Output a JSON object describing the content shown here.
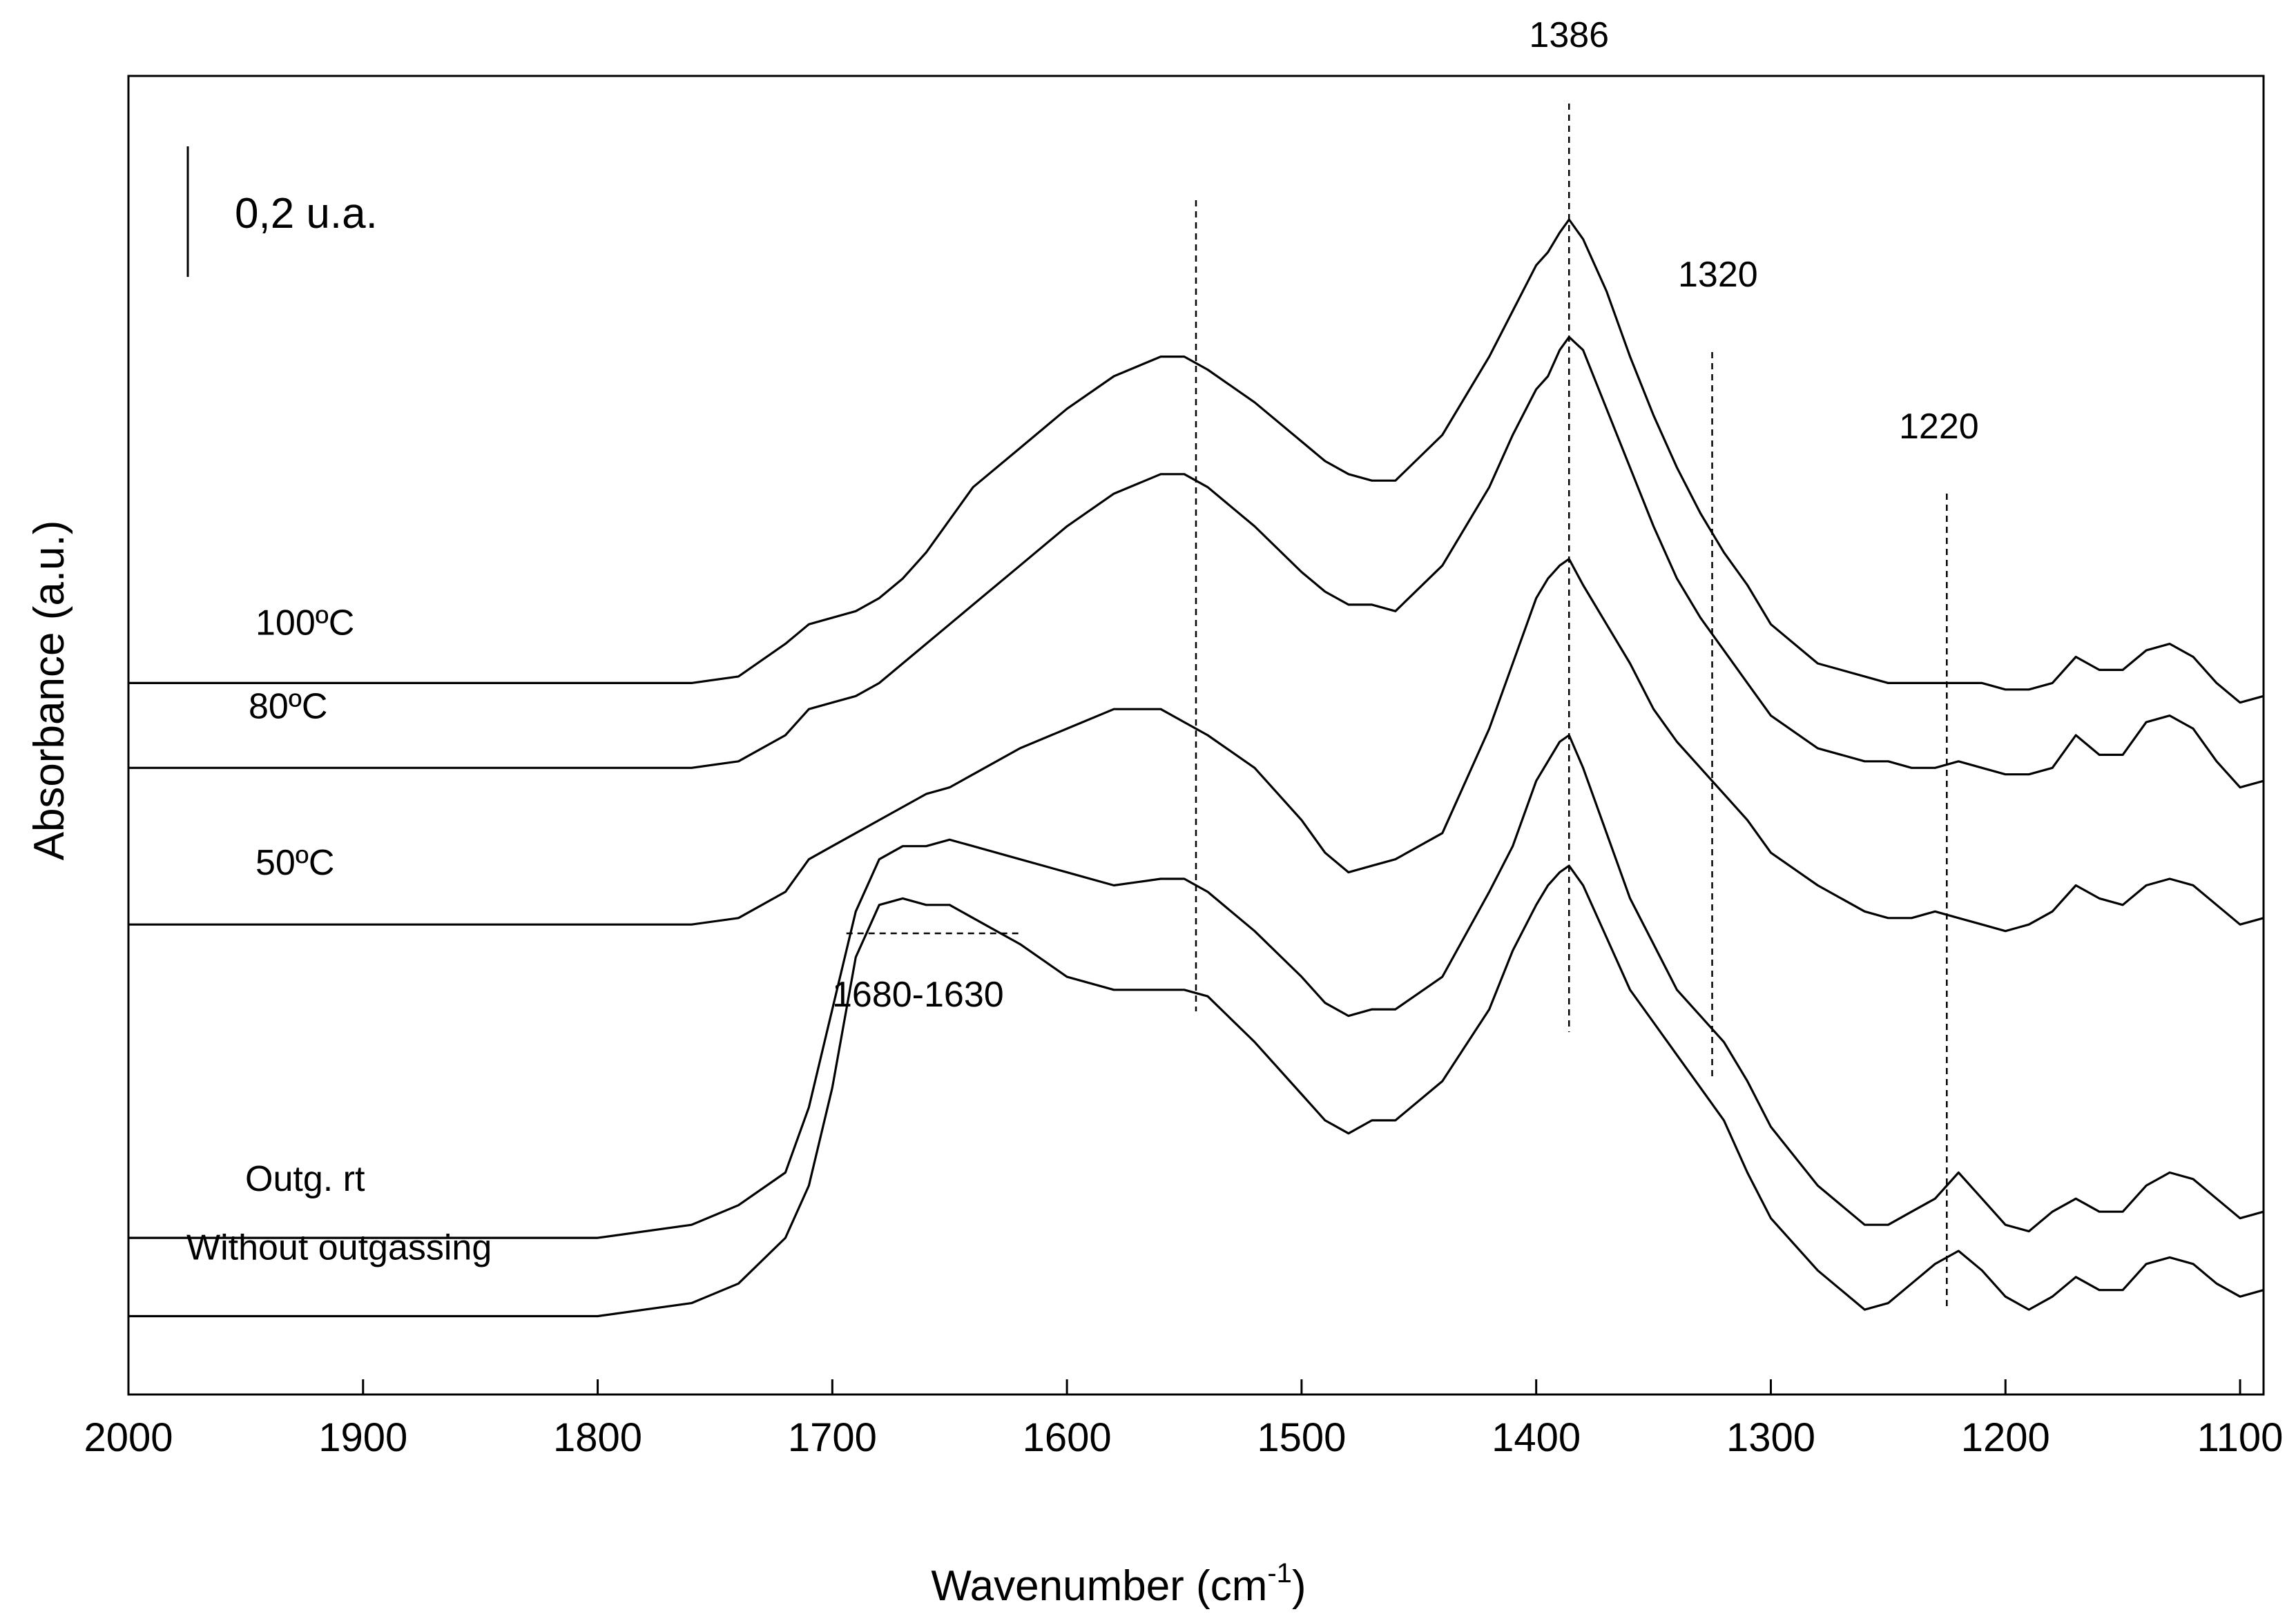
{
  "chart_data": {
    "type": "line",
    "title": "",
    "xlabel": "Wavenumber (cm",
    "xlabel_sup": "-1",
    "xlabel_close": ")",
    "ylabel": "Absorbance (a.u.)",
    "xlim": [
      2000,
      1090
    ],
    "x_reversed": true,
    "xticks": [
      "2000",
      "1900",
      "1800",
      "1700",
      "1600",
      "1500",
      "1400",
      "1300",
      "1200",
      "1100"
    ],
    "ylim": [
      -0.12,
      1.9
    ],
    "scale_bar": {
      "label": "0,2 u.a.",
      "value": 0.2
    },
    "grid": false,
    "x": [
      2000,
      1800,
      1760,
      1740,
      1720,
      1710,
      1700,
      1690,
      1680,
      1670,
      1660,
      1650,
      1640,
      1620,
      1600,
      1580,
      1560,
      1550,
      1540,
      1520,
      1500,
      1490,
      1480,
      1470,
      1460,
      1440,
      1420,
      1410,
      1400,
      1395,
      1390,
      1386,
      1380,
      1370,
      1360,
      1350,
      1340,
      1330,
      1320,
      1310,
      1300,
      1280,
      1260,
      1250,
      1240,
      1230,
      1220,
      1210,
      1200,
      1190,
      1180,
      1170,
      1160,
      1150,
      1140,
      1130,
      1120,
      1110,
      1100,
      1090
    ],
    "series": [
      {
        "name": "100ºC",
        "values": [
          0.0,
          0.0,
          0.0,
          0.01,
          0.06,
          0.09,
          0.1,
          0.11,
          0.13,
          0.16,
          0.2,
          0.25,
          0.3,
          0.36,
          0.42,
          0.47,
          0.5,
          0.5,
          0.48,
          0.43,
          0.37,
          0.34,
          0.32,
          0.31,
          0.31,
          0.38,
          0.5,
          0.57,
          0.64,
          0.66,
          0.69,
          0.71,
          0.68,
          0.6,
          0.5,
          0.41,
          0.33,
          0.26,
          0.2,
          0.15,
          0.09,
          0.03,
          0.01,
          0.0,
          0.0,
          0.0,
          0.0,
          0.0,
          -0.01,
          -0.01,
          0.0,
          0.04,
          0.02,
          0.02,
          0.05,
          0.06,
          0.04,
          0.0,
          -0.03,
          -0.02
        ]
      },
      {
        "name": "80ºC",
        "values": [
          0.0,
          0.0,
          0.0,
          0.01,
          0.05,
          0.09,
          0.1,
          0.11,
          0.13,
          0.16,
          0.19,
          0.22,
          0.25,
          0.31,
          0.37,
          0.42,
          0.45,
          0.45,
          0.43,
          0.37,
          0.3,
          0.27,
          0.25,
          0.25,
          0.24,
          0.31,
          0.43,
          0.51,
          0.58,
          0.6,
          0.64,
          0.66,
          0.64,
          0.55,
          0.46,
          0.37,
          0.29,
          0.23,
          0.18,
          0.13,
          0.08,
          0.03,
          0.01,
          0.01,
          0.0,
          0.0,
          0.01,
          0.0,
          -0.01,
          -0.01,
          0.0,
          0.05,
          0.02,
          0.02,
          0.07,
          0.08,
          0.06,
          0.01,
          -0.03,
          -0.02
        ]
      },
      {
        "name": "50ºC",
        "values": [
          0.0,
          0.0,
          0.0,
          0.01,
          0.05,
          0.1,
          0.12,
          0.14,
          0.16,
          0.18,
          0.2,
          0.21,
          0.23,
          0.27,
          0.3,
          0.33,
          0.33,
          0.31,
          0.29,
          0.24,
          0.16,
          0.11,
          0.08,
          0.09,
          0.1,
          0.14,
          0.3,
          0.4,
          0.5,
          0.53,
          0.55,
          0.56,
          0.52,
          0.46,
          0.4,
          0.33,
          0.28,
          0.24,
          0.2,
          0.16,
          0.11,
          0.06,
          0.02,
          0.01,
          0.01,
          0.02,
          0.01,
          0.0,
          -0.01,
          0.0,
          0.02,
          0.06,
          0.04,
          0.03,
          0.06,
          0.07,
          0.06,
          0.03,
          0.0,
          0.01
        ]
      },
      {
        "name": "Outg. rt",
        "values": [
          0.0,
          0.0,
          0.02,
          0.05,
          0.1,
          0.2,
          0.35,
          0.5,
          0.58,
          0.6,
          0.6,
          0.61,
          0.6,
          0.58,
          0.56,
          0.54,
          0.55,
          0.55,
          0.53,
          0.47,
          0.4,
          0.36,
          0.34,
          0.35,
          0.35,
          0.4,
          0.53,
          0.6,
          0.7,
          0.73,
          0.76,
          0.77,
          0.72,
          0.62,
          0.52,
          0.45,
          0.38,
          0.34,
          0.3,
          0.24,
          0.17,
          0.08,
          0.02,
          0.02,
          0.04,
          0.06,
          0.1,
          0.06,
          0.02,
          0.01,
          0.04,
          0.06,
          0.04,
          0.04,
          0.08,
          0.1,
          0.09,
          0.06,
          0.03,
          0.04
        ]
      },
      {
        "name": "Without outgassing",
        "values": [
          0.0,
          0.0,
          0.02,
          0.05,
          0.12,
          0.2,
          0.35,
          0.55,
          0.63,
          0.64,
          0.63,
          0.63,
          0.61,
          0.57,
          0.52,
          0.5,
          0.5,
          0.5,
          0.49,
          0.42,
          0.34,
          0.3,
          0.28,
          0.3,
          0.3,
          0.36,
          0.47,
          0.56,
          0.63,
          0.66,
          0.68,
          0.69,
          0.66,
          0.58,
          0.5,
          0.45,
          0.4,
          0.35,
          0.3,
          0.22,
          0.15,
          0.07,
          0.01,
          0.02,
          0.05,
          0.08,
          0.1,
          0.07,
          0.03,
          0.01,
          0.03,
          0.06,
          0.04,
          0.04,
          0.08,
          0.09,
          0.08,
          0.05,
          0.03,
          0.04
        ]
      }
    ],
    "series_offsets": [
      0.97,
      0.84,
      0.6,
      0.12,
      0.0
    ],
    "annotations": [
      {
        "text": "1386",
        "x": 1386
      },
      {
        "text": "1320",
        "x": 1320
      },
      {
        "text": "1220",
        "x": 1220
      },
      {
        "text": "1680-1630",
        "x": 1680
      }
    ]
  }
}
